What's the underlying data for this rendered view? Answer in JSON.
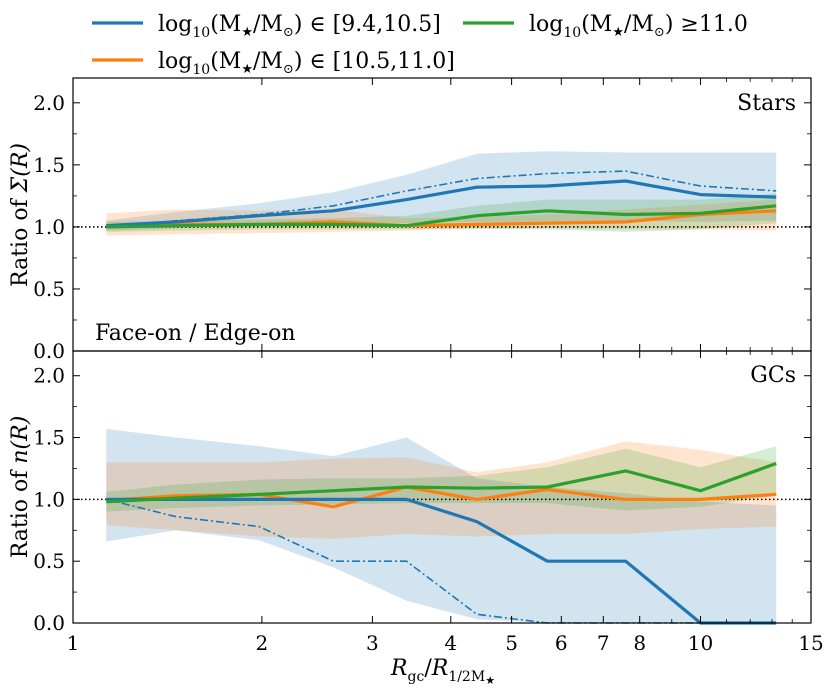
{
  "chart_data": [
    {
      "type": "line",
      "panel": "top",
      "ylabel_prefix": "Ratio of ",
      "ylabel_symbol": "Σ(R)",
      "label": "Stars",
      "annotation": "Face-on / Edge-on",
      "xscale": "log",
      "xlim": [
        1,
        15
      ],
      "ylim": [
        0,
        2.2
      ],
      "yticks": [
        "0.0",
        "0.5",
        "1.0",
        "1.5",
        "2.0"
      ],
      "reference_line": 1.0,
      "x": [
        1.13,
        1.46,
        1.98,
        2.6,
        3.4,
        4.4,
        5.7,
        7.6,
        10.0,
        13.2
      ],
      "series": [
        {
          "name": "log10(M★/M⊙) ∈ [9.4,10.5]",
          "color": "#1f77b4",
          "values": [
            1.01,
            1.04,
            1.09,
            1.13,
            1.22,
            1.32,
            1.33,
            1.37,
            1.26,
            1.24
          ],
          "dashdot": [
            1.0,
            1.05,
            1.1,
            1.17,
            1.29,
            1.39,
            1.43,
            1.45,
            1.33,
            1.29
          ],
          "band_low": [
            0.97,
            0.99,
            1.01,
            1.03,
            1.03,
            1.04,
            1.04,
            1.05,
            1.04,
            1.05
          ],
          "band_high": [
            1.05,
            1.12,
            1.19,
            1.28,
            1.42,
            1.59,
            1.61,
            1.6,
            1.6,
            1.6
          ]
        },
        {
          "name": "log10(M★/M⊙) ∈ [10.5,11.0]",
          "color": "#ff7f0e",
          "values": [
            1.0,
            1.02,
            1.02,
            1.04,
            1.01,
            1.02,
            1.03,
            1.04,
            1.1,
            1.13
          ],
          "band_low": [
            0.93,
            0.94,
            0.95,
            0.96,
            0.97,
            0.98,
            0.99,
            0.98,
            0.98,
            0.97
          ],
          "band_high": [
            1.11,
            1.14,
            1.13,
            1.14,
            1.07,
            1.08,
            1.1,
            1.14,
            1.18,
            1.22
          ]
        },
        {
          "name": "log10(M★/M⊙) ≥11.0",
          "color": "#2ca02c",
          "values": [
            1.0,
            1.01,
            1.02,
            1.02,
            1.01,
            1.09,
            1.13,
            1.1,
            1.11,
            1.17
          ],
          "band_low": [
            0.96,
            0.97,
            0.98,
            0.98,
            0.98,
            0.99,
            0.98,
            0.96,
            0.98,
            1.03
          ],
          "band_high": [
            1.04,
            1.05,
            1.06,
            1.07,
            1.09,
            1.17,
            1.22,
            1.22,
            1.22,
            1.27
          ]
        }
      ]
    },
    {
      "type": "line",
      "panel": "bottom",
      "ylabel_prefix": "Ratio of ",
      "ylabel_symbol": "n(R)",
      "label": "GCs",
      "xscale": "log",
      "xlim": [
        1,
        15
      ],
      "ylim": [
        0,
        2.2
      ],
      "xlabel": "Rgc/R1/2M★",
      "xticks": [
        1,
        2,
        3,
        4,
        5,
        6,
        7,
        8,
        10,
        15
      ],
      "xtick_labels": [
        "1",
        "2",
        "3",
        "4",
        "5",
        "6",
        "7",
        "8",
        "10",
        "15"
      ],
      "yticks": [
        "0.0",
        "0.5",
        "1.0",
        "1.5",
        "2.0"
      ],
      "reference_line": 1.0,
      "x": [
        1.13,
        1.46,
        1.98,
        2.6,
        3.4,
        4.4,
        5.7,
        7.6,
        10.0,
        13.2
      ],
      "series": [
        {
          "name": "log10(M★/M⊙) ∈ [9.4,10.5]",
          "color": "#1f77b4",
          "values": [
            1.0,
            1.0,
            1.0,
            1.0,
            1.0,
            0.82,
            0.5,
            0.5,
            0.0,
            0.0
          ],
          "dashdot": [
            1.0,
            0.86,
            0.78,
            0.5,
            0.5,
            0.07,
            0.0,
            0.0,
            0.0,
            0.0
          ],
          "band_low": [
            0.66,
            0.75,
            0.67,
            0.45,
            0.18,
            0.03,
            0.0,
            0.0,
            0.0,
            0.0
          ],
          "band_high": [
            1.57,
            1.5,
            1.43,
            1.35,
            1.5,
            1.17,
            1.1,
            1.05,
            0.98,
            0.95
          ]
        },
        {
          "name": "log10(M★/M⊙) ∈ [10.5,11.0]",
          "color": "#ff7f0e",
          "values": [
            0.99,
            1.03,
            1.04,
            0.94,
            1.1,
            1.0,
            1.08,
            1.0,
            1.0,
            1.04
          ],
          "band_low": [
            0.79,
            0.75,
            0.7,
            0.68,
            0.72,
            0.7,
            0.72,
            0.72,
            0.76,
            0.78
          ],
          "band_high": [
            1.3,
            1.3,
            1.3,
            1.33,
            1.34,
            1.22,
            1.3,
            1.47,
            1.4,
            1.3
          ]
        },
        {
          "name": "log10(M★/M⊙) ≥11.0",
          "color": "#2ca02c",
          "values": [
            0.98,
            1.01,
            1.04,
            1.07,
            1.1,
            1.09,
            1.1,
            1.23,
            1.07,
            1.29
          ],
          "band_low": [
            0.9,
            0.93,
            0.95,
            0.96,
            0.97,
            0.97,
            0.97,
            0.91,
            0.94,
            1.03
          ],
          "band_high": [
            1.06,
            1.12,
            1.16,
            1.17,
            1.17,
            1.19,
            1.26,
            1.41,
            1.26,
            1.43
          ]
        }
      ]
    }
  ],
  "legend": {
    "placement": "top",
    "entries": [
      {
        "prefix": "log",
        "sub": "10",
        "mid": "(M",
        "star": "★",
        "slash": "/M",
        "sun": "⊙",
        "tail": ") ∈ [9.4,10.5]",
        "color": "#1f77b4"
      },
      {
        "prefix": "log",
        "sub": "10",
        "mid": "(M",
        "star": "★",
        "slash": "/M",
        "sun": "⊙",
        "tail": ") ≥11.0",
        "color": "#2ca02c"
      },
      {
        "prefix": "log",
        "sub": "10",
        "mid": "(M",
        "star": "★",
        "slash": "/M",
        "sun": "⊙",
        "tail": ") ∈ [10.5,11.0]",
        "color": "#ff7f0e"
      }
    ]
  },
  "xlabel_parts": {
    "r1": "R",
    "sub1": "gc",
    "slash": "/",
    "r2": "R",
    "sub2": "1/2M",
    "sub2_star": "★"
  }
}
